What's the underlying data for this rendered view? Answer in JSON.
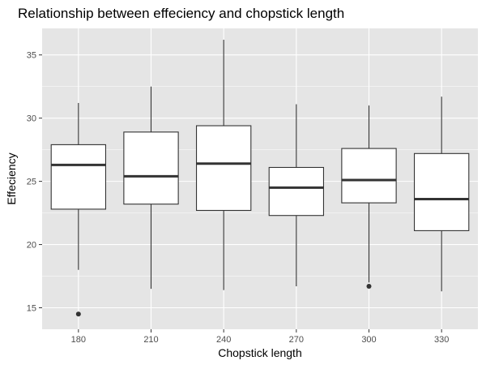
{
  "chart_data": {
    "type": "box",
    "title": "Relationship between effeciency and chopstick length",
    "xlabel": "Chopstick length",
    "ylabel": "Effeciency",
    "categories": [
      "180",
      "210",
      "240",
      "270",
      "300",
      "330"
    ],
    "ylim": [
      13.3,
      37.1
    ],
    "yticks": [
      15,
      20,
      25,
      30,
      35
    ],
    "grid": true,
    "boxes": [
      {
        "category": "180",
        "whisker_low": 18.0,
        "q1": 22.8,
        "median": 26.3,
        "q3": 27.9,
        "whisker_high": 31.2,
        "outliers": [
          14.5
        ]
      },
      {
        "category": "210",
        "whisker_low": 16.5,
        "q1": 23.2,
        "median": 25.4,
        "q3": 28.9,
        "whisker_high": 32.5,
        "outliers": []
      },
      {
        "category": "240",
        "whisker_low": 16.4,
        "q1": 22.7,
        "median": 26.4,
        "q3": 29.4,
        "whisker_high": 36.2,
        "outliers": []
      },
      {
        "category": "270",
        "whisker_low": 16.7,
        "q1": 22.3,
        "median": 24.5,
        "q3": 26.1,
        "whisker_high": 31.1,
        "outliers": []
      },
      {
        "category": "300",
        "whisker_low": 17.0,
        "q1": 23.3,
        "median": 25.1,
        "q3": 27.6,
        "whisker_high": 31.0,
        "outliers": [
          16.7
        ]
      },
      {
        "category": "330",
        "whisker_low": 16.3,
        "q1": 21.1,
        "median": 23.6,
        "q3": 27.2,
        "whisker_high": 31.7,
        "outliers": []
      }
    ],
    "colors": {
      "panel": "#e5e5e5",
      "grid_major": "#ffffff",
      "box_fill": "#ffffff",
      "box_stroke": "#333333",
      "text": "#000000",
      "tick_text": "#4d4d4d"
    }
  }
}
